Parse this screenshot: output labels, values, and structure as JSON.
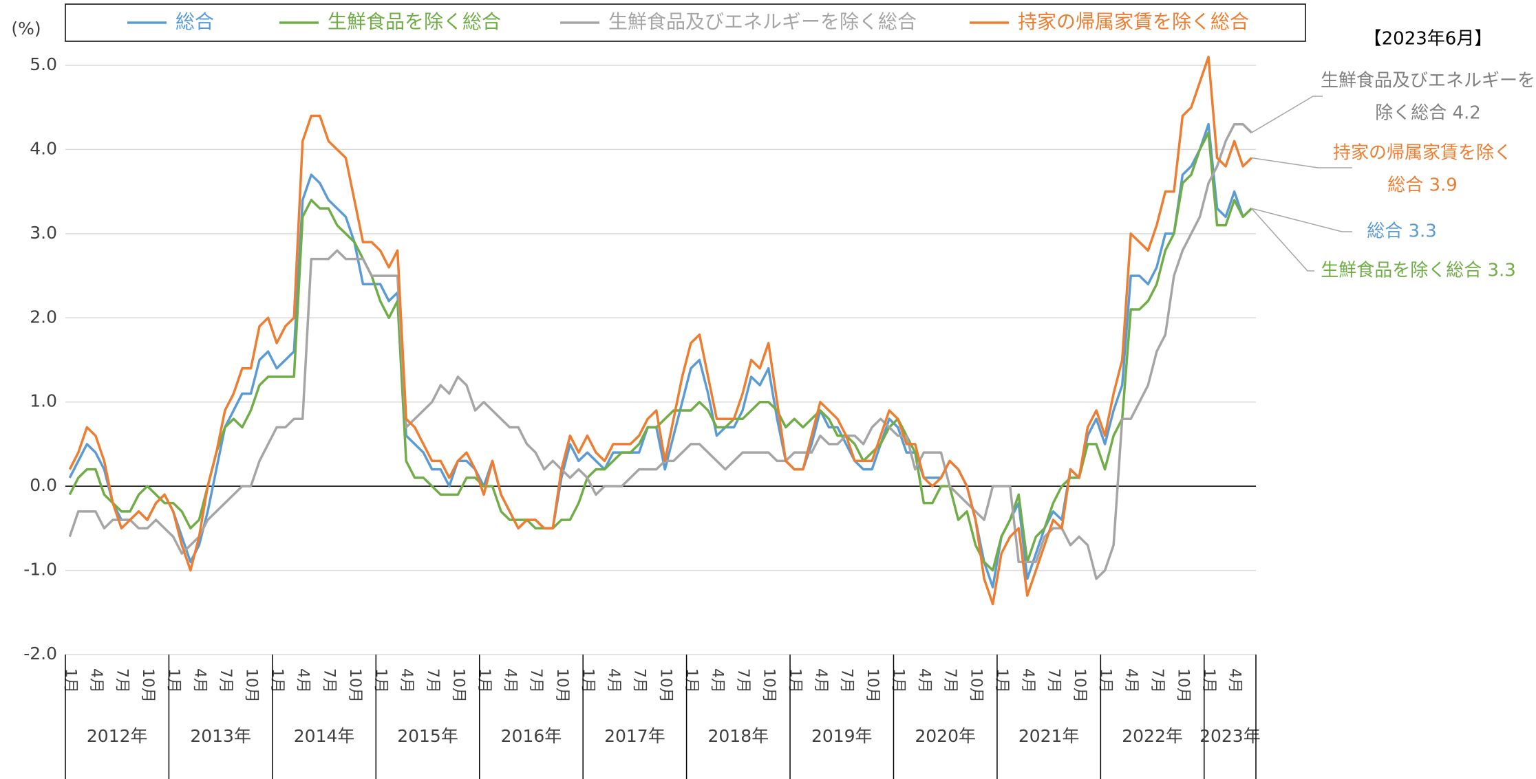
{
  "chart_data": {
    "type": "line",
    "y_label": "(%)",
    "date_label": "【2023年6月】",
    "categories": [
      "1月",
      null,
      null,
      "4月",
      null,
      null,
      "7月",
      null,
      null,
      "10月",
      null,
      null,
      "1月",
      null,
      null,
      "4月",
      null,
      null,
      "7月",
      null,
      null,
      "10月",
      null,
      null,
      "1月",
      null,
      null,
      "4月",
      null,
      null,
      "7月",
      null,
      null,
      "10月",
      null,
      null,
      "1月",
      null,
      null,
      "4月",
      null,
      null,
      "7月",
      null,
      null,
      "10月",
      null,
      null,
      "1月",
      null,
      null,
      "4月",
      null,
      null,
      "7月",
      null,
      null,
      "10月",
      null,
      null,
      "1月",
      null,
      null,
      "4月",
      null,
      null,
      "7月",
      null,
      null,
      "10月",
      null,
      null,
      "1月",
      null,
      null,
      "4月",
      null,
      null,
      "7月",
      null,
      null,
      "10月",
      null,
      null,
      "1月",
      null,
      null,
      "4月",
      null,
      null,
      "7月",
      null,
      null,
      "10月",
      null,
      null,
      "1月",
      null,
      null,
      "4月",
      null,
      null,
      "7月",
      null,
      null,
      "10月",
      null,
      null,
      "1月",
      null,
      null,
      "4月",
      null,
      null,
      "7月",
      null,
      null,
      "10月",
      null,
      null,
      "1月",
      null,
      null,
      "4月",
      null,
      null,
      "7月",
      null,
      null,
      "10月",
      null,
      null,
      "1月",
      null,
      null,
      "4月",
      null,
      null
    ],
    "x_groups": [
      "2012年",
      "2013年",
      "2014年",
      "2015年",
      "2016年",
      "2017年",
      "2018年",
      "2019年",
      "2020年",
      "2021年",
      "2022年",
      "2023年"
    ],
    "ylim": [
      -2.0,
      5.0
    ],
    "yticks": [
      {
        "value": -2.0,
        "label": "-2.0"
      },
      {
        "value": -1.0,
        "label": "-1.0"
      },
      {
        "value": 0,
        "label": "0.0"
      },
      {
        "value": 1.0,
        "label": "1.0"
      },
      {
        "value": 2.0,
        "label": "2.0"
      },
      {
        "value": 3.0,
        "label": "3.0"
      },
      {
        "value": 4.0,
        "label": "4.0"
      },
      {
        "value": 5.0,
        "label": "5.0"
      }
    ],
    "grid": true,
    "legend": "top",
    "series": [
      {
        "name": "総合",
        "color": "#5b9bd5",
        "values": [
          0.1,
          0.3,
          0.5,
          0.4,
          0.2,
          -0.2,
          -0.4,
          -0.4,
          -0.3,
          -0.4,
          -0.2,
          -0.1,
          -0.3,
          -0.6,
          -0.9,
          -0.7,
          -0.3,
          0.2,
          0.7,
          0.9,
          1.1,
          1.1,
          1.5,
          1.6,
          1.4,
          1.5,
          1.6,
          3.4,
          3.7,
          3.6,
          3.4,
          3.3,
          3.2,
          2.9,
          2.4,
          2.4,
          2.4,
          2.2,
          2.3,
          0.6,
          0.5,
          0.4,
          0.2,
          0.2,
          0.0,
          0.3,
          0.3,
          0.2,
          0.0,
          0.3,
          -0.1,
          -0.3,
          -0.5,
          -0.4,
          -0.4,
          -0.5,
          -0.5,
          0.1,
          0.5,
          0.3,
          0.4,
          0.3,
          0.2,
          0.4,
          0.4,
          0.4,
          0.4,
          0.7,
          0.7,
          0.2,
          0.6,
          1.0,
          1.4,
          1.5,
          1.1,
          0.6,
          0.7,
          0.7,
          0.9,
          1.3,
          1.2,
          1.4,
          0.8,
          0.3,
          0.2,
          0.2,
          0.5,
          0.9,
          0.7,
          0.7,
          0.5,
          0.3,
          0.2,
          0.2,
          0.5,
          0.8,
          0.7,
          0.4,
          0.4,
          0.1,
          0.1,
          0.1,
          0.3,
          0.2,
          0.0,
          -0.4,
          -0.9,
          -1.2,
          -0.6,
          -0.4,
          -0.2,
          -1.1,
          -0.8,
          -0.5,
          -0.3,
          -0.4,
          0.2,
          0.1,
          0.6,
          0.8,
          0.5,
          0.9,
          1.2,
          2.5,
          2.5,
          2.4,
          2.6,
          3.0,
          3.0,
          3.7,
          3.8,
          4.0,
          4.3,
          3.3,
          3.2,
          3.5,
          3.2,
          3.3
        ]
      },
      {
        "name": "生鮮食品を除く総合",
        "color": "#70ad47",
        "values": [
          -0.1,
          0.1,
          0.2,
          0.2,
          -0.1,
          -0.2,
          -0.3,
          -0.3,
          -0.1,
          0.0,
          -0.1,
          -0.2,
          -0.2,
          -0.3,
          -0.5,
          -0.4,
          0.0,
          0.4,
          0.7,
          0.8,
          0.7,
          0.9,
          1.2,
          1.3,
          1.3,
          1.3,
          1.3,
          3.2,
          3.4,
          3.3,
          3.3,
          3.1,
          3.0,
          2.9,
          2.7,
          2.5,
          2.2,
          2.0,
          2.2,
          0.3,
          0.1,
          0.1,
          0.0,
          -0.1,
          -0.1,
          -0.1,
          0.1,
          0.1,
          0.0,
          0.0,
          -0.3,
          -0.4,
          -0.4,
          -0.4,
          -0.5,
          -0.5,
          -0.5,
          -0.4,
          -0.4,
          -0.2,
          0.1,
          0.2,
          0.2,
          0.3,
          0.4,
          0.4,
          0.5,
          0.7,
          0.7,
          0.8,
          0.9,
          0.9,
          0.9,
          1.0,
          0.9,
          0.7,
          0.7,
          0.8,
          0.8,
          0.9,
          1.0,
          1.0,
          0.9,
          0.7,
          0.8,
          0.7,
          0.8,
          0.9,
          0.8,
          0.6,
          0.6,
          0.5,
          0.3,
          0.4,
          0.5,
          0.7,
          0.8,
          0.6,
          0.4,
          -0.2,
          -0.2,
          0.0,
          0.0,
          -0.4,
          -0.3,
          -0.7,
          -0.9,
          -1.0,
          -0.6,
          -0.4,
          -0.1,
          -0.9,
          -0.6,
          -0.5,
          -0.2,
          0.0,
          0.1,
          0.1,
          0.5,
          0.5,
          0.2,
          0.6,
          0.8,
          2.1,
          2.1,
          2.2,
          2.4,
          2.8,
          3.0,
          3.6,
          3.7,
          4.0,
          4.2,
          3.1,
          3.1,
          3.4,
          3.2,
          3.3
        ]
      },
      {
        "name": "生鮮食品及びエネルギーを除く総合",
        "color": "#a5a5a5",
        "values": [
          -0.6,
          -0.3,
          -0.3,
          -0.3,
          -0.5,
          -0.4,
          -0.4,
          -0.4,
          -0.5,
          -0.5,
          -0.4,
          -0.5,
          -0.6,
          -0.8,
          -0.7,
          -0.6,
          -0.4,
          -0.3,
          -0.2,
          -0.1,
          0.0,
          0.0,
          0.3,
          0.5,
          0.7,
          0.7,
          0.8,
          0.8,
          2.7,
          2.7,
          2.7,
          2.8,
          2.7,
          2.7,
          2.7,
          2.5,
          2.5,
          2.5,
          2.5,
          0.7,
          0.8,
          0.9,
          1.0,
          1.2,
          1.1,
          1.3,
          1.2,
          0.9,
          1.0,
          0.9,
          0.8,
          0.7,
          0.7,
          0.5,
          0.4,
          0.2,
          0.3,
          0.2,
          0.1,
          0.2,
          0.1,
          -0.1,
          0.0,
          0.0,
          0.0,
          0.1,
          0.2,
          0.2,
          0.2,
          0.3,
          0.3,
          0.4,
          0.5,
          0.5,
          0.4,
          0.3,
          0.2,
          0.3,
          0.4,
          0.4,
          0.4,
          0.4,
          0.3,
          0.3,
          0.4,
          0.4,
          0.4,
          0.6,
          0.5,
          0.5,
          0.6,
          0.6,
          0.5,
          0.7,
          0.8,
          0.7,
          0.6,
          0.6,
          0.2,
          0.4,
          0.4,
          0.4,
          0.0,
          -0.1,
          -0.2,
          -0.3,
          -0.4,
          0.0,
          0.0,
          0.0,
          -0.9,
          -0.9,
          -0.9,
          -0.6,
          -0.5,
          -0.5,
          -0.7,
          -0.6,
          -0.7,
          -1.1,
          -1.0,
          -0.7,
          0.8,
          0.8,
          1.0,
          1.2,
          1.6,
          1.8,
          2.5,
          2.8,
          3.0,
          3.2,
          3.6,
          3.8,
          4.1,
          4.3,
          4.3,
          4.2
        ]
      },
      {
        "name": "持家の帰属家賃を除く総合",
        "color": "#ed7d31",
        "values": [
          0.2,
          0.4,
          0.7,
          0.6,
          0.3,
          -0.2,
          -0.5,
          -0.4,
          -0.3,
          -0.4,
          -0.2,
          -0.1,
          -0.3,
          -0.7,
          -1.0,
          -0.6,
          0.0,
          0.4,
          0.9,
          1.1,
          1.4,
          1.4,
          1.9,
          2.0,
          1.7,
          1.9,
          2.0,
          4.1,
          4.4,
          4.4,
          4.1,
          4.0,
          3.9,
          3.4,
          2.9,
          2.9,
          2.8,
          2.6,
          2.8,
          0.8,
          0.7,
          0.5,
          0.3,
          0.3,
          0.1,
          0.3,
          0.4,
          0.2,
          -0.1,
          0.3,
          -0.1,
          -0.3,
          -0.5,
          -0.4,
          -0.4,
          -0.5,
          -0.5,
          0.2,
          0.6,
          0.4,
          0.6,
          0.4,
          0.3,
          0.5,
          0.5,
          0.5,
          0.6,
          0.8,
          0.9,
          0.3,
          0.8,
          1.3,
          1.7,
          1.8,
          1.3,
          0.8,
          0.8,
          0.8,
          1.1,
          1.5,
          1.4,
          1.7,
          1.0,
          0.3,
          0.2,
          0.2,
          0.6,
          1.0,
          0.9,
          0.8,
          0.6,
          0.3,
          0.3,
          0.3,
          0.6,
          0.9,
          0.8,
          0.5,
          0.5,
          0.1,
          0.0,
          0.1,
          0.3,
          0.2,
          0.0,
          -0.4,
          -1.1,
          -1.4,
          -0.8,
          -0.6,
          -0.5,
          -1.3,
          -1.0,
          -0.7,
          -0.4,
          -0.5,
          0.2,
          0.1,
          0.7,
          0.9,
          0.6,
          1.1,
          1.5,
          3.0,
          2.9,
          2.8,
          3.1,
          3.5,
          3.5,
          4.4,
          4.5,
          4.8,
          5.1,
          3.9,
          3.8,
          4.1,
          3.8,
          3.9
        ]
      }
    ],
    "annotations": [
      {
        "lines": [
          "生鮮食品及びエネルギーを",
          "除く総合 4.2"
        ],
        "color": "#808080",
        "series": 2
      },
      {
        "lines": [
          "持家の帰属家賃を除く",
          "総合 3.9"
        ],
        "color": "#ed7d31",
        "series": 3
      },
      {
        "lines": [
          "総合 3.3"
        ],
        "color": "#5b9bd5",
        "series": 0
      },
      {
        "lines": [
          "生鮮食品を除く総合 3.3"
        ],
        "color": "#70ad47",
        "series": 1
      }
    ]
  }
}
